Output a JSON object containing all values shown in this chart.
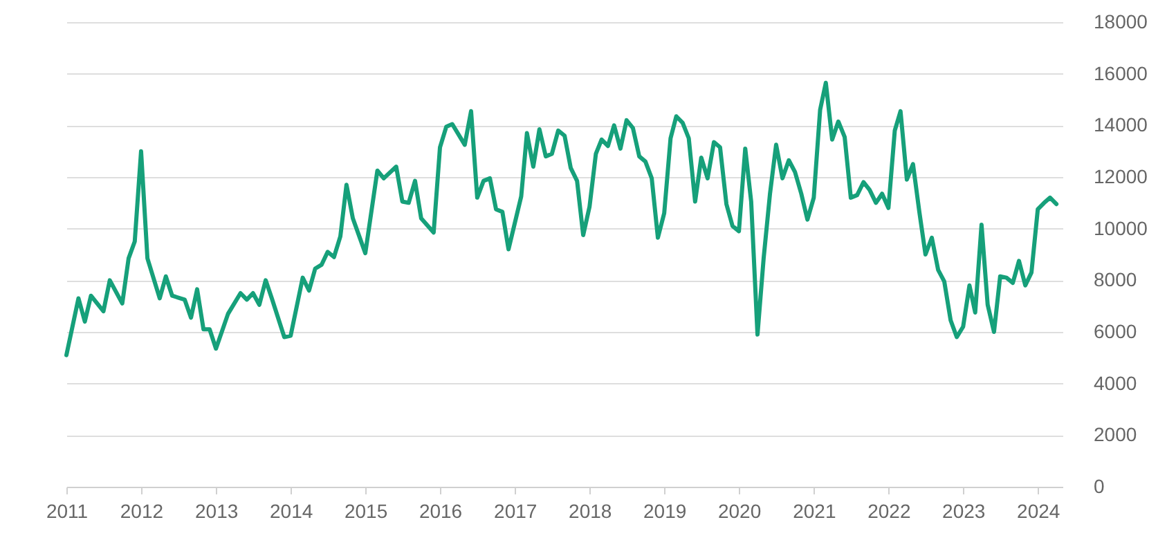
{
  "chart_data": {
    "type": "line",
    "x": [
      "2011-01",
      "2011-03",
      "2011-04",
      "2011-05",
      "2011-07",
      "2011-08",
      "2011-10",
      "2011-11",
      "2011-12",
      "2012-01",
      "2012-02",
      "2012-04",
      "2012-05",
      "2012-06",
      "2012-08",
      "2012-09",
      "2012-10",
      "2012-11",
      "2012-12",
      "2013-01",
      "2013-03",
      "2013-05",
      "2013-06",
      "2013-07",
      "2013-08",
      "2013-09",
      "2013-10",
      "2013-12",
      "2014-01",
      "2014-03",
      "2014-04",
      "2014-05",
      "2014-06",
      "2014-07",
      "2014-08",
      "2014-09",
      "2014-10",
      "2014-11",
      "2015-01",
      "2015-03",
      "2015-04",
      "2015-06",
      "2015-07",
      "2015-08",
      "2015-09",
      "2015-10",
      "2015-12",
      "2016-01",
      "2016-02",
      "2016-03",
      "2016-05",
      "2016-06",
      "2016-07",
      "2016-08",
      "2016-09",
      "2016-10",
      "2016-11",
      "2016-12",
      "2017-02",
      "2017-03",
      "2017-04",
      "2017-05",
      "2017-06",
      "2017-07",
      "2017-08",
      "2017-09",
      "2017-10",
      "2017-11",
      "2017-12",
      "2018-01",
      "2018-02",
      "2018-03",
      "2018-04",
      "2018-05",
      "2018-06",
      "2018-07",
      "2018-08",
      "2018-09",
      "2018-10",
      "2018-11",
      "2018-12",
      "2019-01",
      "2019-02",
      "2019-03",
      "2019-04",
      "2019-05",
      "2019-06",
      "2019-07",
      "2019-08",
      "2019-09",
      "2019-10",
      "2019-11",
      "2019-12",
      "2020-01",
      "2020-02",
      "2020-03",
      "2020-04",
      "2020-05",
      "2020-06",
      "2020-07",
      "2020-08",
      "2020-09",
      "2020-10",
      "2020-11",
      "2020-12",
      "2021-01",
      "2021-02",
      "2021-03",
      "2021-04",
      "2021-05",
      "2021-06",
      "2021-07",
      "2021-08",
      "2021-09",
      "2021-10",
      "2021-11",
      "2021-12",
      "2022-01",
      "2022-02",
      "2022-03",
      "2022-04",
      "2022-05",
      "2022-06",
      "2022-07",
      "2022-08",
      "2022-09",
      "2022-10",
      "2022-11",
      "2022-12",
      "2023-01",
      "2023-02",
      "2023-03",
      "2023-04",
      "2023-05",
      "2023-06",
      "2023-07",
      "2023-08",
      "2023-09",
      "2023-10",
      "2023-11",
      "2023-12",
      "2024-01",
      "2024-02",
      "2024-03",
      "2024-04"
    ],
    "series": [
      {
        "color": "#16a07a",
        "values": [
          5100,
          7300,
          6400,
          7400,
          6800,
          8000,
          7100,
          8850,
          9500,
          13000,
          8850,
          7300,
          8150,
          7400,
          7250,
          6550,
          7650,
          6100,
          6100,
          5350,
          6700,
          7500,
          7250,
          7500,
          7050,
          8000,
          7300,
          5800,
          5850,
          8100,
          7600,
          8450,
          8600,
          9100,
          8900,
          9700,
          11700,
          10400,
          9050,
          12250,
          11950,
          12400,
          11050,
          11000,
          11850,
          10400,
          9850,
          13150,
          13950,
          14050,
          13250,
          14550,
          11200,
          11850,
          11950,
          10750,
          10650,
          9200,
          11250,
          13700,
          12400,
          13850,
          12800,
          12900,
          13800,
          13600,
          12350,
          11850,
          9750,
          10850,
          12900,
          13450,
          13200,
          14000,
          13100,
          14200,
          13900,
          12800,
          12600,
          11950,
          9650,
          10600,
          13500,
          14350,
          14100,
          13500,
          11050,
          12750,
          11950,
          13350,
          13150,
          10950,
          10100,
          9900,
          13100,
          11050,
          5900,
          8850,
          11350,
          13250,
          11950,
          12650,
          12200,
          11350,
          10350,
          11200,
          14600,
          15650,
          13450,
          14150,
          13550,
          11200,
          11300,
          11800,
          11500,
          11000,
          11350,
          10800,
          13800,
          14550,
          11900,
          12500,
          10650,
          9000,
          9650,
          8400,
          7950,
          6450,
          5800,
          6200,
          7800,
          6750,
          10150,
          7050,
          6000,
          8150,
          8100,
          7900,
          8750,
          7800,
          8300,
          10750,
          11000,
          11200,
          10950
        ]
      }
    ],
    "xlim": [
      "2011-01",
      "2024-05"
    ],
    "xticks": [
      "2011",
      "2012",
      "2013",
      "2014",
      "2015",
      "2016",
      "2017",
      "2018",
      "2019",
      "2020",
      "2021",
      "2022",
      "2023",
      "2024"
    ],
    "ylim": [
      0,
      18000
    ],
    "yticks": [
      0,
      2000,
      4000,
      6000,
      8000,
      10000,
      12000,
      14000,
      16000,
      18000
    ],
    "grid": "y"
  }
}
